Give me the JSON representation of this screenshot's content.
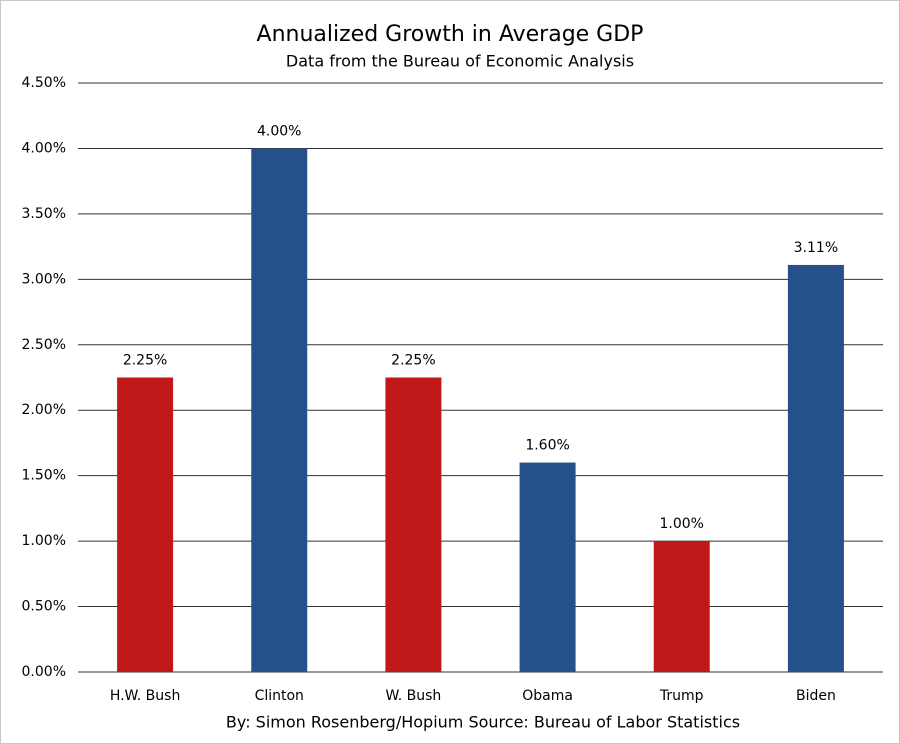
{
  "chart_data": {
    "type": "bar",
    "title": "Annualized Growth in Average GDP",
    "subtitle": "Data from the Bureau of Economic Analysis",
    "source": "By: Simon Rosenberg/Hopium Source: Bureau of Labor Statistics",
    "categories": [
      "H.W. Bush",
      "Clinton",
      "W. Bush",
      "Obama",
      "Trump",
      "Biden"
    ],
    "values": [
      2.25,
      4,
      2.25,
      1.6,
      1,
      3.11
    ],
    "value_labels": [
      "2.25%",
      "4.00%",
      "2.25%",
      "1.60%",
      "1.00%",
      "3.11%"
    ],
    "colors": [
      "#c0171a",
      "#25508a",
      "#c0171a",
      "#25508a",
      "#c0171a",
      "#25508a"
    ],
    "ylim": [
      0,
      4.5
    ],
    "yticks": [
      {
        "value": 0,
        "label": "0.00%"
      },
      {
        "value": 0.5,
        "label": "0.50%"
      },
      {
        "value": 1,
        "label": "1.00%"
      },
      {
        "value": 1.5,
        "label": "1.50%"
      },
      {
        "value": 2,
        "label": "2.00%"
      },
      {
        "value": 2.5,
        "label": "2.50%"
      },
      {
        "value": 3,
        "label": "3.00%"
      },
      {
        "value": 3.5,
        "label": "3.50%"
      },
      {
        "value": 4,
        "label": "4.00%"
      },
      {
        "value": 4.5,
        "label": "4.50%"
      }
    ],
    "grid": true
  }
}
